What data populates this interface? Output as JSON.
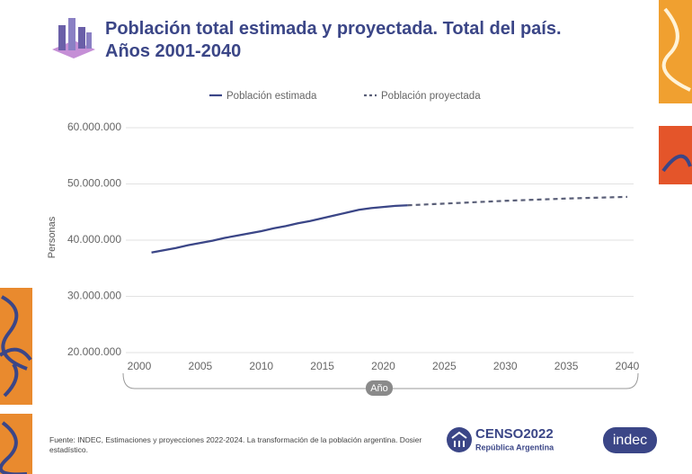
{
  "chart_data": {
    "type": "line",
    "title": "Población total estimada y proyectada. Total del país. Años 2001-2040",
    "x_label": "Año",
    "y_label": "Personas",
    "xlim": [
      2000,
      2040
    ],
    "xticks": [
      2000,
      2005,
      2010,
      2015,
      2020,
      2025,
      2030,
      2035,
      2040
    ],
    "ylim": [
      20000000,
      60000000
    ],
    "yticks": [
      {
        "value": 20000000,
        "label": "20.000.000"
      },
      {
        "value": 30000000,
        "label": "30.000.000"
      },
      {
        "value": 40000000,
        "label": "40.000.000"
      },
      {
        "value": 50000000,
        "label": "50.000.000"
      },
      {
        "value": 60000000,
        "label": "60.000.000"
      }
    ],
    "grid": true,
    "legend": "top",
    "series": [
      {
        "name": "Población estimada",
        "color": "#3b4687",
        "dashed": false,
        "x": [
          2001,
          2002,
          2003,
          2004,
          2005,
          2006,
          2007,
          2008,
          2009,
          2010,
          2011,
          2012,
          2013,
          2014,
          2015,
          2016,
          2017,
          2018,
          2019,
          2020,
          2021,
          2022
        ],
        "values": [
          37800000,
          38200000,
          38600000,
          39100000,
          39500000,
          39900000,
          40400000,
          40800000,
          41200000,
          41600000,
          42100000,
          42500000,
          43000000,
          43400000,
          43900000,
          44400000,
          44900000,
          45400000,
          45700000,
          45900000,
          46100000,
          46200000
        ]
      },
      {
        "name": "Población proyectada",
        "color": "#5a5f78",
        "dashed": true,
        "x": [
          2022,
          2025,
          2030,
          2035,
          2040
        ],
        "values": [
          46200000,
          46500000,
          47000000,
          47400000,
          47700000
        ]
      }
    ]
  },
  "footer": {
    "source": "Fuente: INDEC, Estimaciones y proyecciones 2022-2024. La transformación de la población argentina. Dosier estadístico.",
    "censo_logo": "CENSO2022",
    "censo_subtitle": "República Argentina",
    "indec_logo": "indec"
  }
}
